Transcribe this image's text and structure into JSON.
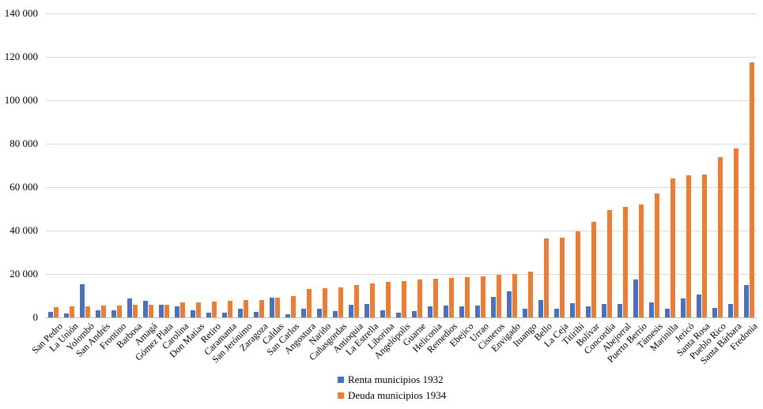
{
  "chart_data": {
    "type": "bar",
    "title": "",
    "xlabel": "",
    "ylabel": "",
    "grid": true,
    "legend_position": "bottom-center",
    "ylim": [
      0,
      140000
    ],
    "ytick_step": 20000,
    "ytick_labels": [
      "0",
      "20 000",
      "40 000",
      "60 000",
      "80 000",
      "100 000",
      "120 000",
      "140 000"
    ],
    "categories": [
      "San Pedro",
      "La Unión",
      "Yolombó",
      "San Andrés",
      "Frontino",
      "Barbosa",
      "Amagá",
      "Gómez Plata",
      "Carolina",
      "Don Matías",
      "Retiro",
      "Caramanta",
      "San Jerónimo",
      "Zaragoza",
      "Caldas",
      "San Carlos",
      "Angostura",
      "Nariño",
      "Cañasgordas",
      "Antioquia",
      "La Estrella",
      "Liborina",
      "Angelópolis",
      "Guarne",
      "Heliconia",
      "Remedios",
      "Ebejico",
      "Urrao",
      "Cisneros",
      "Envigado",
      "Ituango",
      "Bello",
      "La Ceja",
      "Titiribí",
      "Bolívar",
      "Concordia",
      "Abejorral",
      "Puerto Berrío",
      "Támesis",
      "Marinilla",
      "Jericó",
      "Santa Rosa",
      "Pueblo Rico",
      "Santa Bárbara",
      "Fredonia"
    ],
    "series": [
      {
        "name": "Renta municipios 1932",
        "color": "#4472C4",
        "values": [
          2500,
          2000,
          15300,
          3400,
          3400,
          8700,
          7700,
          6000,
          5000,
          3100,
          2200,
          2200,
          4000,
          2600,
          9000,
          1500,
          4000,
          4100,
          2900,
          5900,
          6100,
          3100,
          2200,
          3000,
          5200,
          5300,
          5000,
          5500,
          9500,
          11900,
          4100,
          8100,
          3900,
          6500,
          5100,
          6100,
          6100,
          17500,
          7000,
          3900,
          8900,
          10500,
          4200,
          6100,
          15000
        ]
      },
      {
        "name": "Deuda municipios 1934",
        "color": "#ED7D31",
        "values": [
          4600,
          5000,
          5000,
          5500,
          5600,
          5700,
          5800,
          6000,
          6800,
          7000,
          7400,
          7700,
          7900,
          8100,
          9100,
          9700,
          13200,
          13400,
          13900,
          14900,
          15800,
          16300,
          16900,
          17300,
          17800,
          18300,
          18700,
          19000,
          19600,
          20100,
          21000,
          36500,
          36900,
          39800,
          44000,
          49500,
          51000,
          52000,
          57000,
          64000,
          65500,
          66000,
          74000,
          78000,
          117500
        ]
      }
    ],
    "colors": {
      "gridline": "#d9d9d9",
      "axis_line": "#bfbfbf",
      "text": "#000000",
      "background": "#ffffff"
    }
  }
}
